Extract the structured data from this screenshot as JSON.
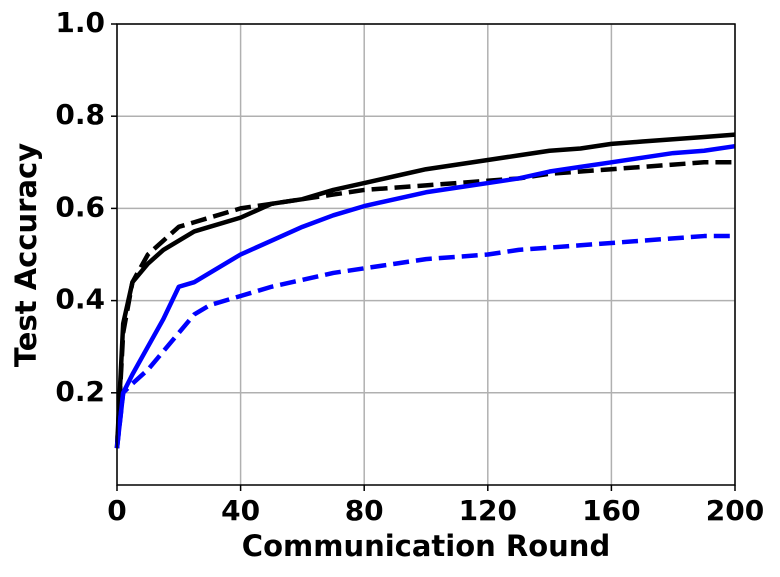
{
  "chart_data": {
    "type": "line",
    "xlabel": "Communication Round",
    "ylabel": "Test Accuracy",
    "x": [
      0,
      2,
      5,
      10,
      15,
      20,
      25,
      30,
      40,
      50,
      60,
      70,
      80,
      90,
      100,
      110,
      120,
      130,
      140,
      150,
      160,
      170,
      180,
      190,
      200
    ],
    "series": [
      {
        "color": "#000000",
        "linestyle": "solid",
        "values": [
          0.08,
          0.35,
          0.44,
          0.48,
          0.51,
          0.53,
          0.55,
          0.56,
          0.58,
          0.61,
          0.62,
          0.64,
          0.655,
          0.67,
          0.685,
          0.695,
          0.705,
          0.715,
          0.725,
          0.73,
          0.74,
          0.745,
          0.75,
          0.755,
          0.76
        ]
      },
      {
        "color": "#000000",
        "linestyle": "dashed",
        "values": [
          0.08,
          0.33,
          0.44,
          0.5,
          0.53,
          0.56,
          0.57,
          0.58,
          0.6,
          0.61,
          0.62,
          0.63,
          0.64,
          0.645,
          0.65,
          0.655,
          0.66,
          0.665,
          0.675,
          0.68,
          0.685,
          0.69,
          0.695,
          0.7,
          0.7
        ]
      },
      {
        "color": "#0000ff",
        "linestyle": "solid",
        "values": [
          0.08,
          0.2,
          0.24,
          0.3,
          0.36,
          0.43,
          0.44,
          0.46,
          0.5,
          0.53,
          0.56,
          0.585,
          0.605,
          0.62,
          0.635,
          0.645,
          0.655,
          0.665,
          0.68,
          0.69,
          0.7,
          0.71,
          0.72,
          0.725,
          0.735
        ]
      },
      {
        "color": "#0000ff",
        "linestyle": "dashed",
        "values": [
          0.08,
          0.2,
          0.22,
          0.25,
          0.29,
          0.33,
          0.37,
          0.39,
          0.41,
          0.43,
          0.445,
          0.46,
          0.47,
          0.48,
          0.49,
          0.495,
          0.5,
          0.51,
          0.515,
          0.52,
          0.525,
          0.53,
          0.535,
          0.54,
          0.54
        ]
      }
    ],
    "xlim": [
      0,
      200
    ],
    "xticks": [
      0,
      40,
      80,
      120,
      160,
      200
    ],
    "ylim": [
      0,
      1
    ],
    "yticks": [
      0.2,
      0.4,
      0.6,
      0.8,
      {
        "value": 1,
        "label": "1.0"
      }
    ],
    "grid": true
  }
}
